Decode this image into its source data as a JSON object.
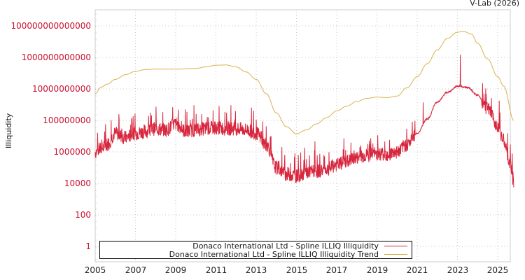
{
  "credit": "V-Lab (2026)",
  "chart_data": {
    "type": "line",
    "title": "",
    "xlabel": "",
    "ylabel": "Illiquidity",
    "yscale": "log",
    "ylim": [
      0.3,
      5000000000000000.0
    ],
    "xlim": [
      2005.0,
      2025.8
    ],
    "grid": true,
    "legend_position": "bottom",
    "x_ticks": [
      "2005",
      "2007",
      "2009",
      "2011",
      "2013",
      "2015",
      "2017",
      "2019",
      "2021",
      "2023",
      "2025"
    ],
    "y_ticks": [
      "100000000000000",
      "1000000000000",
      "10000000000",
      "100000000",
      "1000000",
      "10000",
      "100",
      "1"
    ],
    "series": [
      {
        "name": "Donaco International Ltd - Spline ILLIQ Illiquidity",
        "color": "#d7263d",
        "x": [
          2005.0,
          2005.3,
          2005.6,
          2006.0,
          2006.5,
          2007.0,
          2007.5,
          2008.0,
          2008.5,
          2009.0,
          2009.5,
          2010.0,
          2010.5,
          2011.0,
          2011.5,
          2012.0,
          2012.5,
          2013.0,
          2013.5,
          2014.0,
          2014.5,
          2015.0,
          2015.5,
          2016.0,
          2016.5,
          2017.0,
          2017.5,
          2018.0,
          2018.5,
          2019.0,
          2019.5,
          2020.0,
          2020.5,
          2021.0,
          2021.5,
          2022.0,
          2022.5,
          2023.0,
          2023.5,
          2024.0,
          2024.5,
          2025.0,
          2025.3,
          2025.6,
          2025.8
        ],
        "values": [
          1000000.0,
          1500000.0,
          3000000.0,
          15000000.0,
          8000000.0,
          15000000.0,
          20000000.0,
          30000000.0,
          25000000.0,
          60000000.0,
          20000000.0,
          25000000.0,
          30000000.0,
          35000000.0,
          30000000.0,
          30000000.0,
          25000000.0,
          15000000.0,
          3000000.0,
          100000.0,
          40000.0,
          30000.0,
          50000.0,
          60000.0,
          80000.0,
          150000.0,
          250000.0,
          400000.0,
          600000.0,
          800000.0,
          700000.0,
          1000000.0,
          3000000.0,
          15000000.0,
          120000000.0,
          1500000000.0,
          6000000000.0,
          15000000000.0,
          12000000000.0,
          4000000000.0,
          500000000.0,
          50000000.0,
          5000000.0,
          200000.0,
          15000.0
        ]
      },
      {
        "name": "Donaco International Ltd - Spline ILLIQ Illiquidity Trend",
        "color": "#d9b24e",
        "x": [
          2005.0,
          2005.3,
          2005.6,
          2006.0,
          2006.5,
          2007.0,
          2007.5,
          2008.0,
          2009.0,
          2010.0,
          2010.5,
          2011.0,
          2011.5,
          2012.0,
          2012.5,
          2013.0,
          2013.5,
          2014.0,
          2014.5,
          2015.0,
          2015.5,
          2016.0,
          2016.5,
          2017.0,
          2017.5,
          2018.0,
          2018.5,
          2019.0,
          2019.5,
          2020.0,
          2020.5,
          2021.0,
          2021.5,
          2022.0,
          2022.5,
          2023.0,
          2023.3,
          2023.7,
          2024.0,
          2024.5,
          2025.0,
          2025.3,
          2025.8
        ],
        "values": [
          5000000000.0,
          13000000000.0,
          20000000000.0,
          40000000000.0,
          80000000000.0,
          130000000000.0,
          170000000000.0,
          180000000000.0,
          180000000000.0,
          200000000000.0,
          250000000000.0,
          320000000000.0,
          330000000000.0,
          250000000000.0,
          120000000000.0,
          40000000000.0,
          5000000000.0,
          300000000.0,
          40000000.0,
          14000000.0,
          25000000.0,
          60000000.0,
          150000000.0,
          400000000.0,
          800000000.0,
          1600000000.0,
          2500000000.0,
          3000000000.0,
          2800000000.0,
          3500000000.0,
          12000000000.0,
          60000000000.0,
          400000000000.0,
          3000000000000.0,
          16000000000000.0,
          40000000000000.0,
          45000000000000.0,
          30000000000000.0,
          8000000000000.0,
          800000000000.0,
          60000000000.0,
          15000000000.0,
          100000000.0
        ]
      }
    ]
  },
  "legend": {
    "items": [
      {
        "label": "Donaco International Ltd - Spline ILLIQ Illiquidity",
        "color": "#d7263d"
      },
      {
        "label": "Donaco International Ltd - Spline ILLIQ Illiquidity Trend",
        "color": "#d9b24e"
      }
    ]
  }
}
